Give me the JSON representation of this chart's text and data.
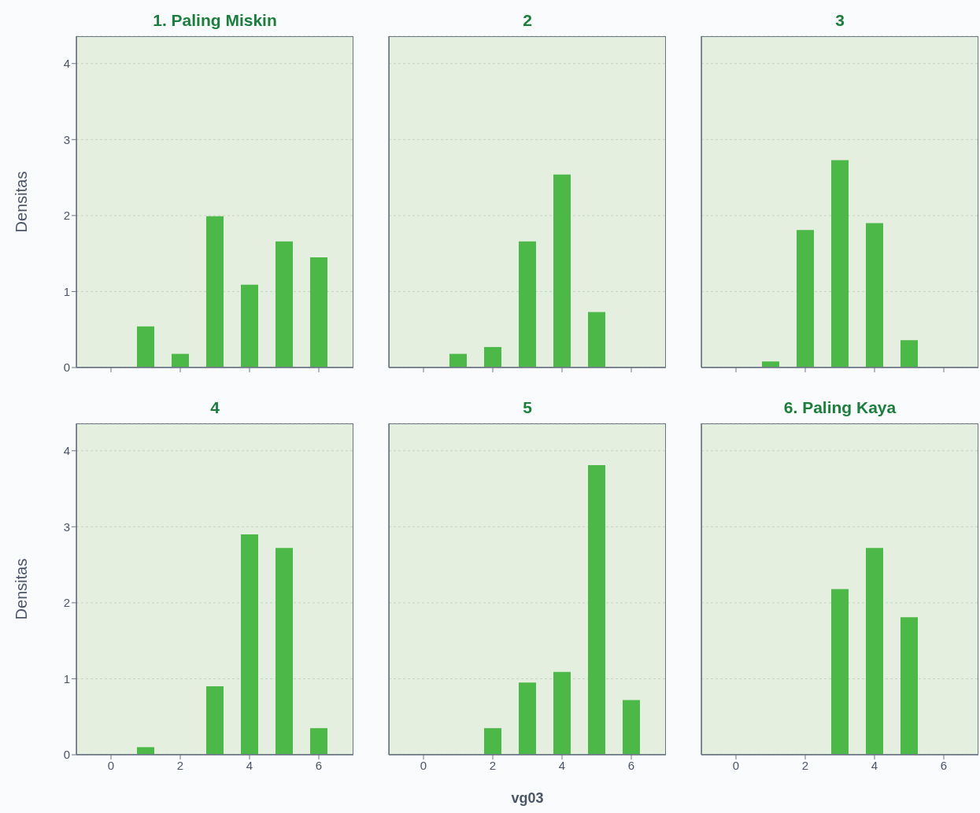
{
  "chart_data": [
    {
      "type": "bar",
      "title": "1. Paling Miskin",
      "ylabel": "Densitas",
      "x": [
        1,
        2,
        3,
        4,
        5,
        6
      ],
      "values": [
        0.54,
        0.18,
        1.99,
        1.09,
        1.66,
        1.45
      ],
      "color": "#4bb848",
      "xlim": [
        -1,
        7
      ],
      "xticks": [
        0,
        2,
        4,
        6
      ],
      "ylim": [
        0,
        4.36
      ],
      "yticks": [
        0,
        1,
        2,
        3,
        4
      ],
      "grid": "y",
      "tick_labels": "y"
    },
    {
      "type": "bar",
      "title": "2",
      "x": [
        1,
        2,
        3,
        4,
        5
      ],
      "values": [
        0.18,
        0.27,
        1.66,
        2.54,
        0.73
      ],
      "color": "#4bb848",
      "xlim": [
        -1,
        7
      ],
      "xticks": [
        0,
        2,
        4,
        6
      ],
      "ylim": [
        0,
        4.36
      ],
      "yticks": [
        0,
        1,
        2,
        3,
        4
      ],
      "grid": "y",
      "tick_labels": false
    },
    {
      "type": "bar",
      "title": "3",
      "x": [
        1,
        2,
        3,
        4,
        5
      ],
      "values": [
        0.08,
        1.81,
        2.73,
        1.9,
        0.36
      ],
      "color": "#4bb848",
      "xlim": [
        -1,
        7
      ],
      "xticks": [
        0,
        2,
        4,
        6
      ],
      "ylim": [
        0,
        4.36
      ],
      "yticks": [
        0,
        1,
        2,
        3,
        4
      ],
      "grid": "y",
      "tick_labels": false
    },
    {
      "type": "bar",
      "title": "4",
      "ylabel": "Densitas",
      "x": [
        1,
        3,
        4,
        5,
        6
      ],
      "values": [
        0.1,
        0.9,
        2.9,
        2.72,
        0.35
      ],
      "color": "#4bb848",
      "xlim": [
        -1,
        7
      ],
      "xticks": [
        0,
        2,
        4,
        6
      ],
      "ylim": [
        0,
        4.36
      ],
      "yticks": [
        0,
        1,
        2,
        3,
        4
      ],
      "grid": "y"
    },
    {
      "type": "bar",
      "title": "5",
      "xlabel": "vg03",
      "x": [
        2,
        3,
        4,
        5,
        6
      ],
      "values": [
        0.35,
        0.95,
        1.09,
        3.81,
        0.72
      ],
      "color": "#4bb848",
      "xlim": [
        -1,
        7
      ],
      "xticks": [
        0,
        2,
        4,
        6
      ],
      "ylim": [
        0,
        4.36
      ],
      "yticks": [
        0,
        1,
        2,
        3,
        4
      ],
      "grid": "y",
      "tick_labels": "x"
    },
    {
      "type": "bar",
      "title": "6. Paling Kaya",
      "x": [
        3,
        4,
        5
      ],
      "values": [
        2.18,
        2.72,
        1.81
      ],
      "color": "#4bb848",
      "xlim": [
        -1,
        7
      ],
      "xticks": [
        0,
        2,
        4,
        6
      ],
      "ylim": [
        0,
        4.36
      ],
      "yticks": [
        0,
        1,
        2,
        3,
        4
      ],
      "grid": "y",
      "tick_labels": "x"
    }
  ]
}
